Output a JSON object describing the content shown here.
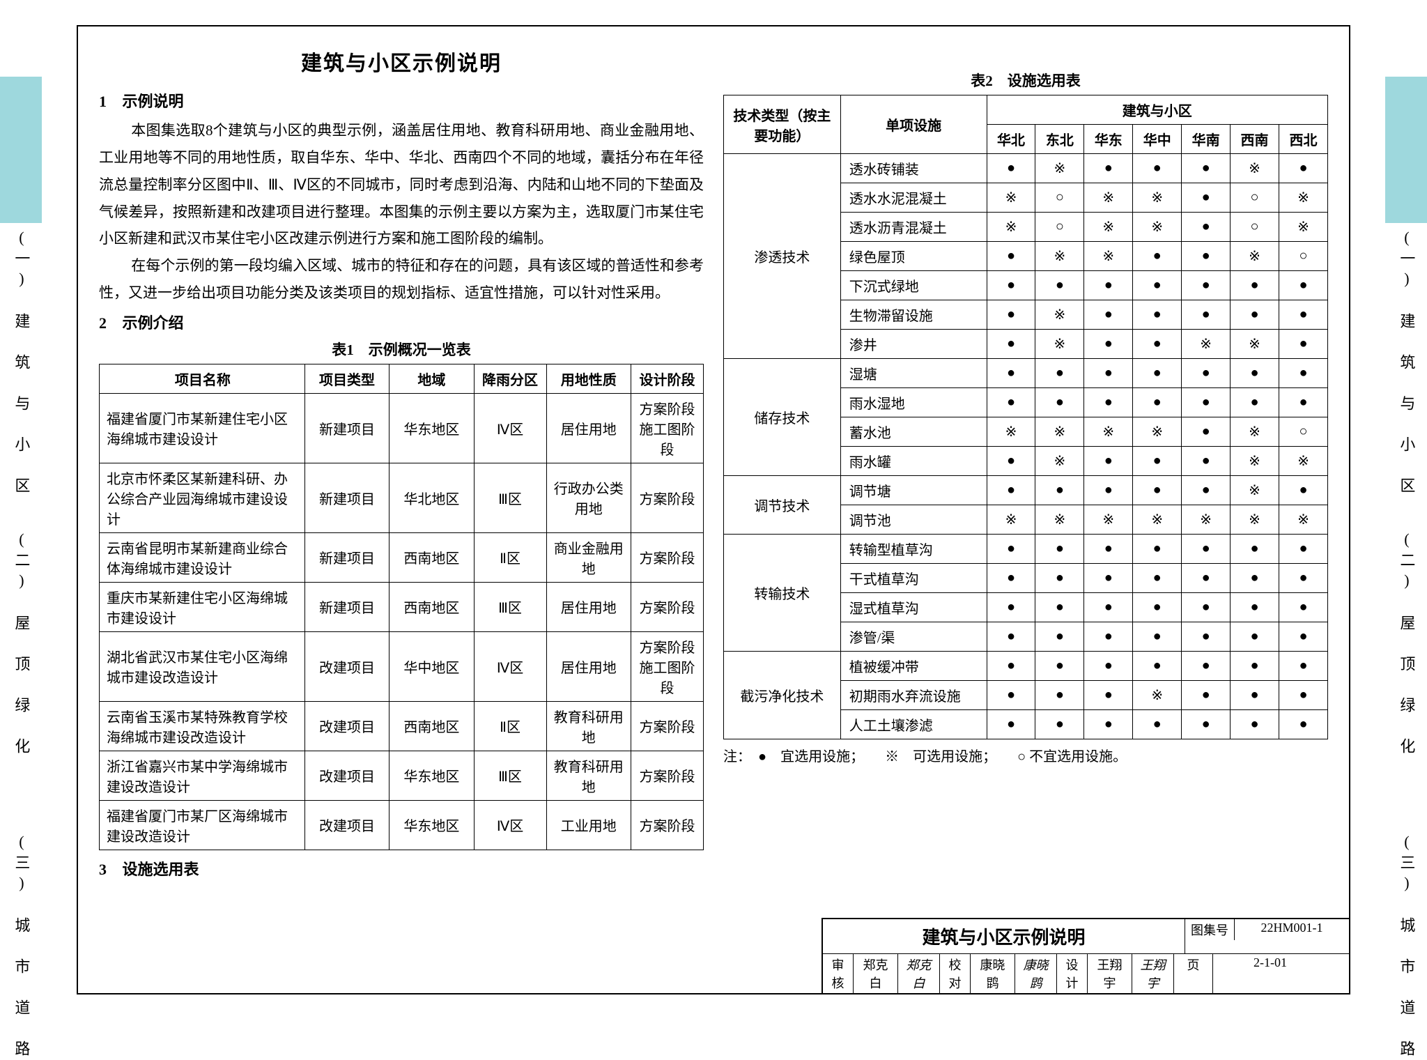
{
  "sidebar_tabs": [
    {
      "label": "(一) 建 筑 与 小 区",
      "colored": true
    },
    {
      "label": "(二) 屋 顶 绿 化",
      "colored": false
    },
    {
      "label": "(三) 城 市 道 路",
      "colored": false
    }
  ],
  "main_title": "建筑与小区示例说明",
  "section1": {
    "num": "1",
    "heading": "示例说明",
    "para1": "本图集选取8个建筑与小区的典型示例，涵盖居住用地、教育科研用地、商业金融用地、工业用地等不同的用地性质，取自华东、华中、华北、西南四个不同的地域，囊括分布在年径流总量控制率分区图中Ⅱ、Ⅲ、Ⅳ区的不同城市，同时考虑到沿海、内陆和山地不同的下垫面及气候差异，按照新建和改建项目进行整理。本图集的示例主要以方案为主，选取厦门市某住宅小区新建和武汉市某住宅小区改建示例进行方案和施工图阶段的编制。",
    "para2": "在每个示例的第一段均编入区域、城市的特征和存在的问题，具有该区域的普适性和参考性，又进一步给出项目功能分类及该类项目的规划指标、适宜性措施，可以针对性采用。"
  },
  "section2": {
    "num": "2",
    "heading": "示例介绍",
    "caption": "表1　示例概况一览表"
  },
  "table1": {
    "headers": [
      "项目名称",
      "项目类型",
      "地域",
      "降雨分区",
      "用地性质",
      "设计阶段"
    ],
    "rows": [
      [
        "福建省厦门市某新建住宅小区海绵城市建设设计",
        "新建项目",
        "华东地区",
        "Ⅳ区",
        "居住用地",
        "方案阶段\n施工图阶段"
      ],
      [
        "北京市怀柔区某新建科研、办公综合产业园海绵城市建设设计",
        "新建项目",
        "华北地区",
        "Ⅲ区",
        "行政办公类用地",
        "方案阶段"
      ],
      [
        "云南省昆明市某新建商业综合体海绵城市建设设计",
        "新建项目",
        "西南地区",
        "Ⅱ区",
        "商业金融用地",
        "方案阶段"
      ],
      [
        "重庆市某新建住宅小区海绵城市建设设计",
        "新建项目",
        "西南地区",
        "Ⅲ区",
        "居住用地",
        "方案阶段"
      ],
      [
        "湖北省武汉市某住宅小区海绵城市建设改造设计",
        "改建项目",
        "华中地区",
        "Ⅳ区",
        "居住用地",
        "方案阶段\n施工图阶段"
      ],
      [
        "云南省玉溪市某特殊教育学校海绵城市建设改造设计",
        "改建项目",
        "西南地区",
        "Ⅱ区",
        "教育科研用地",
        "方案阶段"
      ],
      [
        "浙江省嘉兴市某中学海绵城市建设改造设计",
        "改建项目",
        "华东地区",
        "Ⅲ区",
        "教育科研用地",
        "方案阶段"
      ],
      [
        "福建省厦门市某厂区海绵城市建设改造设计",
        "改建项目",
        "华东地区",
        "Ⅳ区",
        "工业用地",
        "方案阶段"
      ]
    ]
  },
  "section3": {
    "num": "3",
    "heading": "设施选用表"
  },
  "col2_caption": "表2　设施选用表",
  "table2": {
    "group_header1": "技术类型（按主要功能）",
    "group_header2": "单项设施",
    "region_group": "建筑与小区",
    "regions": [
      "华北",
      "东北",
      "华东",
      "华中",
      "华南",
      "西南",
      "西北"
    ],
    "groups": [
      {
        "name": "渗透技术",
        "rows": [
          {
            "fac": "透水砖铺装",
            "v": [
              "●",
              "※",
              "●",
              "●",
              "●",
              "※",
              "●"
            ]
          },
          {
            "fac": "透水水泥混凝土",
            "v": [
              "※",
              "○",
              "※",
              "※",
              "●",
              "○",
              "※"
            ]
          },
          {
            "fac": "透水沥青混凝土",
            "v": [
              "※",
              "○",
              "※",
              "※",
              "●",
              "○",
              "※"
            ]
          },
          {
            "fac": "绿色屋顶",
            "v": [
              "●",
              "※",
              "※",
              "●",
              "●",
              "※",
              "○"
            ]
          },
          {
            "fac": "下沉式绿地",
            "v": [
              "●",
              "●",
              "●",
              "●",
              "●",
              "●",
              "●"
            ]
          },
          {
            "fac": "生物滞留设施",
            "v": [
              "●",
              "※",
              "●",
              "●",
              "●",
              "●",
              "●"
            ]
          },
          {
            "fac": "渗井",
            "v": [
              "●",
              "※",
              "●",
              "●",
              "※",
              "※",
              "●"
            ]
          }
        ]
      },
      {
        "name": "储存技术",
        "rows": [
          {
            "fac": "湿塘",
            "v": [
              "●",
              "●",
              "●",
              "●",
              "●",
              "●",
              "●"
            ]
          },
          {
            "fac": "雨水湿地",
            "v": [
              "●",
              "●",
              "●",
              "●",
              "●",
              "●",
              "●"
            ]
          },
          {
            "fac": "蓄水池",
            "v": [
              "※",
              "※",
              "※",
              "※",
              "●",
              "※",
              "○"
            ]
          },
          {
            "fac": "雨水罐",
            "v": [
              "●",
              "※",
              "●",
              "●",
              "●",
              "※",
              "※"
            ]
          }
        ]
      },
      {
        "name": "调节技术",
        "rows": [
          {
            "fac": "调节塘",
            "v": [
              "●",
              "●",
              "●",
              "●",
              "●",
              "※",
              "●"
            ]
          },
          {
            "fac": "调节池",
            "v": [
              "※",
              "※",
              "※",
              "※",
              "※",
              "※",
              "※"
            ]
          }
        ]
      },
      {
        "name": "转输技术",
        "rows": [
          {
            "fac": "转输型植草沟",
            "v": [
              "●",
              "●",
              "●",
              "●",
              "●",
              "●",
              "●"
            ]
          },
          {
            "fac": "干式植草沟",
            "v": [
              "●",
              "●",
              "●",
              "●",
              "●",
              "●",
              "●"
            ]
          },
          {
            "fac": "湿式植草沟",
            "v": [
              "●",
              "●",
              "●",
              "●",
              "●",
              "●",
              "●"
            ]
          },
          {
            "fac": "渗管/渠",
            "v": [
              "●",
              "●",
              "●",
              "●",
              "●",
              "●",
              "●"
            ]
          }
        ]
      },
      {
        "name": "截污净化技术",
        "rows": [
          {
            "fac": "植被缓冲带",
            "v": [
              "●",
              "●",
              "●",
              "●",
              "●",
              "●",
              "●"
            ]
          },
          {
            "fac": "初期雨水弃流设施",
            "v": [
              "●",
              "●",
              "●",
              "※",
              "●",
              "●",
              "●"
            ]
          },
          {
            "fac": "人工土壤渗滤",
            "v": [
              "●",
              "●",
              "●",
              "●",
              "●",
              "●",
              "●"
            ]
          }
        ]
      }
    ]
  },
  "legend": "注：　●　宜选用设施；　　※　可选用设施；　　○ 不宜选用设施。",
  "titleblock": {
    "title": "建筑与小区示例说明",
    "atlas_label": "图集号",
    "atlas_val": "22HM001-1",
    "page_label": "页",
    "page_val": "2-1-01",
    "roles": [
      {
        "role": "审核",
        "name": "郑克白",
        "sign": "郑克白"
      },
      {
        "role": "校对",
        "name": "康晓鹍",
        "sign": "康晓鹍"
      },
      {
        "role": "设计",
        "name": "王翔宇",
        "sign": "王翔宇"
      }
    ]
  }
}
